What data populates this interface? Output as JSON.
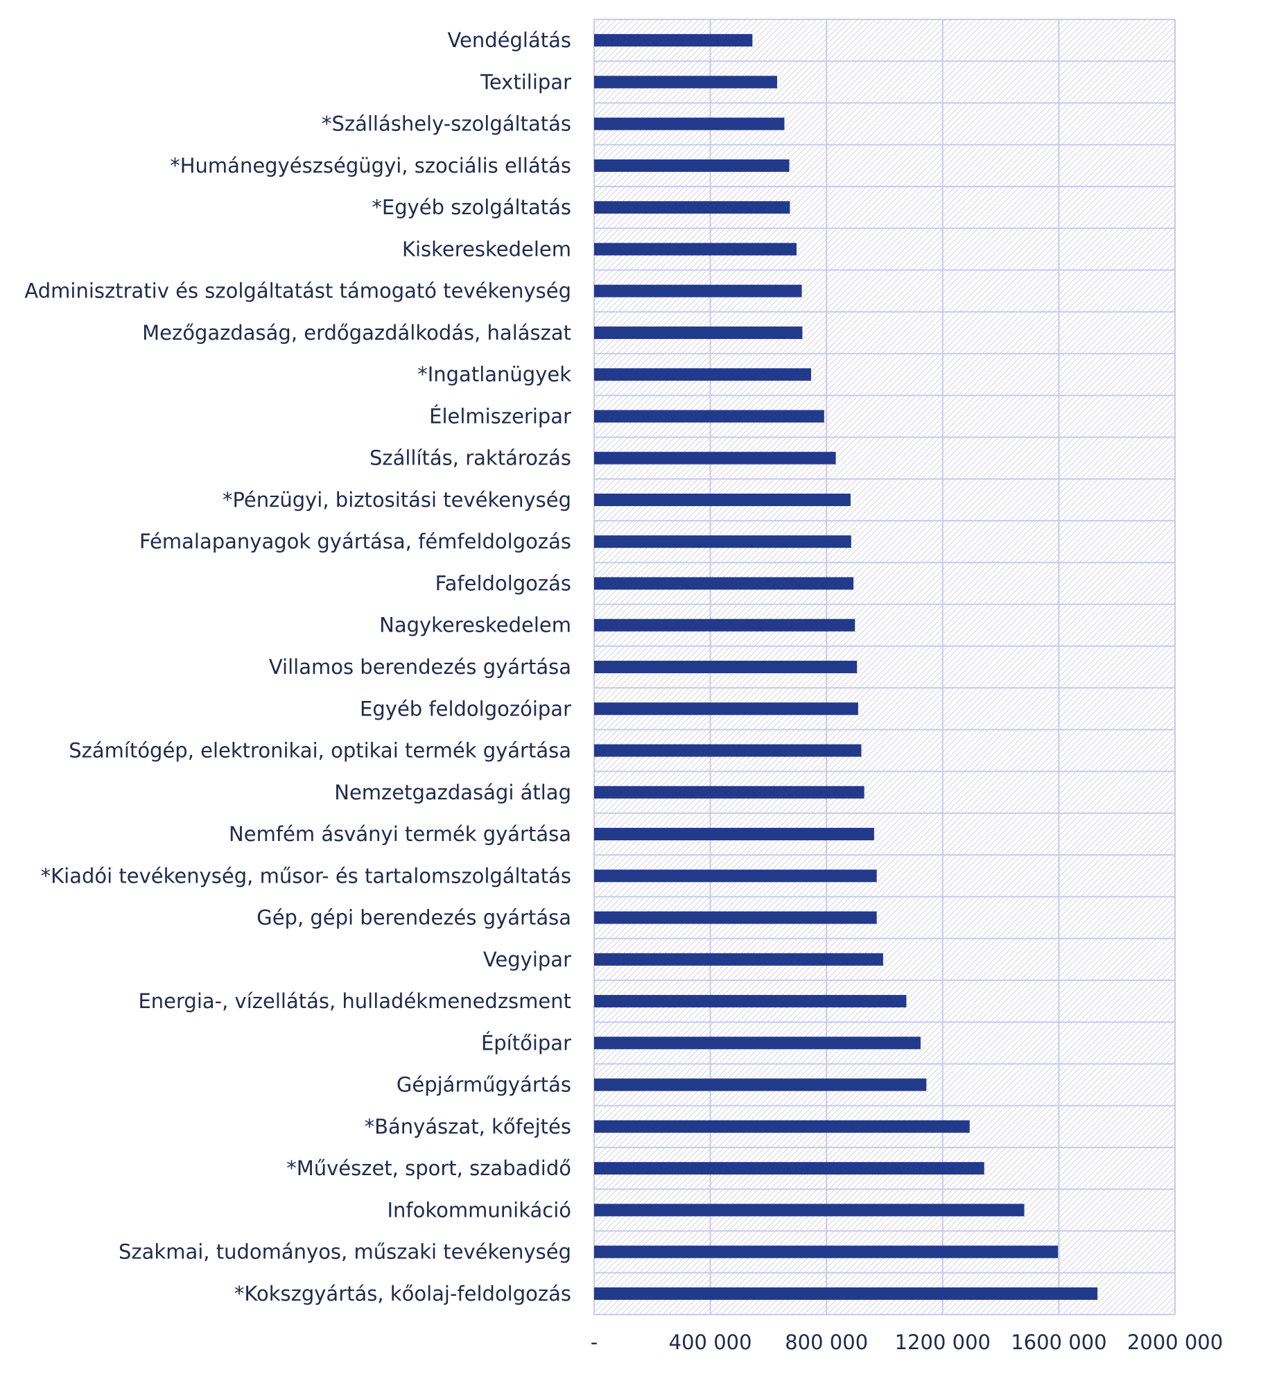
{
  "colors": {
    "bar": "#233a8c",
    "grid": "#c9c9ee",
    "hatch": "#d4d4e4",
    "text": "#1f2a4d"
  },
  "chart_data": {
    "type": "bar",
    "orientation": "horizontal",
    "title": "",
    "xlabel": "",
    "ylabel": "",
    "xlim": [
      0,
      2000000
    ],
    "grid": true,
    "x_ticks": [
      0,
      400000,
      800000,
      1200000,
      1600000,
      2000000
    ],
    "x_tick_labels": [
      "-",
      "400 000",
      "800 000",
      "1200 000",
      "1600 000",
      "2000 000"
    ],
    "categories": [
      "Vendéglátás",
      "Textilipar",
      "*Szálláshely-szolgáltatás",
      "*Humánegyészségügyi, szociális ellátás",
      "*Egyéb szolgáltatás",
      "Kiskereskedelem",
      "Adminisztrativ és szolgáltatást támogató tevékenység",
      "Mezőgazdaság, erdőgazdálkodás, halászat",
      "*Ingatlanügyek",
      "Élelmiszeripar",
      "Szállítás, raktározás",
      "*Pénzügyi, biztositási tevékenység",
      "Fémalapanyagok gyártása, fémfeldolgozás",
      "Fafeldolgozás",
      "Nagykereskedelem",
      "Villamos berendezés gyártása",
      "Egyéb feldolgozóipar",
      "Számítógép, elektronikai, optikai termék gyártása",
      "Nemzetgazdasági átlag",
      "Nemfém ásványi termék gyártása",
      "*Kiadói tevékenység, műsor- és tartalomszolgáltatás",
      "Gép, gépi berendezés gyártása",
      "Vegyipar",
      "Energia-, vízellátás, hulladékmenedzsment",
      "Építőipar",
      "Gépjárműgyártás",
      "*Bányászat, kőfejtés",
      "*Művészet, sport, szabadidő",
      "Infokommunikáció",
      "Szakmai, tudományos, műszaki tevékenység",
      "*Kokszgyártás, kőolaj-feldolgozás"
    ],
    "values": [
      545000,
      630000,
      655000,
      672000,
      674000,
      697000,
      715000,
      717000,
      747000,
      792000,
      832000,
      883000,
      885000,
      893000,
      898000,
      905000,
      909000,
      920000,
      930000,
      964000,
      973000,
      973000,
      995000,
      1075000,
      1124000,
      1144000,
      1293000,
      1343000,
      1481000,
      1597000,
      1733000
    ]
  }
}
